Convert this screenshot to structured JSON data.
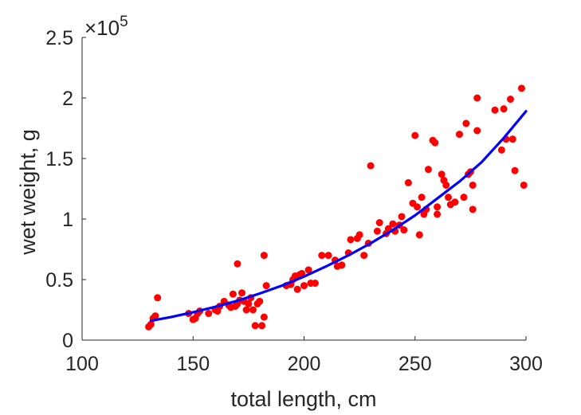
{
  "chart_data": {
    "type": "scatter",
    "xlabel": "total length, cm",
    "ylabel": "wet weight, g",
    "xlim": [
      100,
      300
    ],
    "ylim": [
      0,
      250000
    ],
    "xticks": [
      100,
      150,
      200,
      250,
      300
    ],
    "xtick_labels": [
      "100",
      "150",
      "200",
      "250",
      "300"
    ],
    "yticks": [
      0,
      50000,
      100000,
      150000,
      200000,
      250000
    ],
    "ytick_labels": [
      "0",
      "0.5",
      "1",
      "1.5",
      "2",
      "2.5"
    ],
    "y_multiplier": {
      "prefix": "×10",
      "exponent": "5"
    },
    "grid": false,
    "colors": {
      "points": "#ff0000",
      "fit": "#0000ff",
      "axis": "#262626"
    },
    "points": [
      [
        130,
        11000
      ],
      [
        131,
        13000
      ],
      [
        132,
        18000
      ],
      [
        133,
        20000
      ],
      [
        134,
        35000
      ],
      [
        148,
        22000
      ],
      [
        150,
        17000
      ],
      [
        151,
        18000
      ],
      [
        152,
        22000
      ],
      [
        153,
        24000
      ],
      [
        157,
        22000
      ],
      [
        160,
        25000
      ],
      [
        161,
        24000
      ],
      [
        162,
        28000
      ],
      [
        164,
        32000
      ],
      [
        166,
        29000
      ],
      [
        167,
        27000
      ],
      [
        168,
        38000
      ],
      [
        169,
        28000
      ],
      [
        170,
        30000
      ],
      [
        170,
        63000
      ],
      [
        171,
        33000
      ],
      [
        172,
        39000
      ],
      [
        173,
        32000
      ],
      [
        174,
        25000
      ],
      [
        175,
        30000
      ],
      [
        176,
        35000
      ],
      [
        177,
        25000
      ],
      [
        178,
        12000
      ],
      [
        179,
        30000
      ],
      [
        180,
        32000
      ],
      [
        181,
        12000
      ],
      [
        182,
        70000
      ],
      [
        182,
        19000
      ],
      [
        183,
        45000
      ],
      [
        192,
        45000
      ],
      [
        194,
        46000
      ],
      [
        195,
        50000
      ],
      [
        196,
        53000
      ],
      [
        197,
        42000
      ],
      [
        198,
        54000
      ],
      [
        199,
        55000
      ],
      [
        200,
        45000
      ],
      [
        202,
        58000
      ],
      [
        203,
        47000
      ],
      [
        205,
        47000
      ],
      [
        208,
        70000
      ],
      [
        211,
        70000
      ],
      [
        214,
        66000
      ],
      [
        215,
        61000
      ],
      [
        217,
        62000
      ],
      [
        220,
        72000
      ],
      [
        221,
        83000
      ],
      [
        224,
        84000
      ],
      [
        225,
        87000
      ],
      [
        227,
        70000
      ],
      [
        229,
        80000
      ],
      [
        230,
        144000
      ],
      [
        233,
        90000
      ],
      [
        234,
        97000
      ],
      [
        237,
        88000
      ],
      [
        238,
        92000
      ],
      [
        240,
        96000
      ],
      [
        241,
        90000
      ],
      [
        243,
        95000
      ],
      [
        244,
        102000
      ],
      [
        245,
        91000
      ],
      [
        247,
        130000
      ],
      [
        249,
        113000
      ],
      [
        250,
        169000
      ],
      [
        251,
        110000
      ],
      [
        252,
        87000
      ],
      [
        253,
        118000
      ],
      [
        254,
        104000
      ],
      [
        255,
        108000
      ],
      [
        256,
        141000
      ],
      [
        258,
        165000
      ],
      [
        259,
        163000
      ],
      [
        260,
        110000
      ],
      [
        260,
        104000
      ],
      [
        262,
        137000
      ],
      [
        263,
        132000
      ],
      [
        264,
        128000
      ],
      [
        265,
        118000
      ],
      [
        266,
        112000
      ],
      [
        268,
        114000
      ],
      [
        270,
        170000
      ],
      [
        272,
        118000
      ],
      [
        273,
        179000
      ],
      [
        274,
        137000
      ],
      [
        275,
        139000
      ],
      [
        276,
        108000
      ],
      [
        276,
        128000
      ],
      [
        278,
        200000
      ],
      [
        278,
        173000
      ],
      [
        286,
        190000
      ],
      [
        289,
        157000
      ],
      [
        290,
        191000
      ],
      [
        291,
        166000
      ],
      [
        293,
        199000
      ],
      [
        294,
        166000
      ],
      [
        295,
        140000
      ],
      [
        298,
        208000
      ],
      [
        299,
        128000
      ]
    ],
    "fit_curve": {
      "type": "line",
      "x": [
        131,
        140,
        150,
        160,
        170,
        180,
        190,
        200,
        210,
        220,
        230,
        240,
        250,
        260,
        270,
        280,
        290,
        300
      ],
      "y": [
        16000,
        19000,
        23000,
        27500,
        32500,
        38500,
        45000,
        52500,
        61000,
        70000,
        80000,
        91000,
        103000,
        117000,
        131000,
        147000,
        167000,
        189000
      ]
    }
  }
}
